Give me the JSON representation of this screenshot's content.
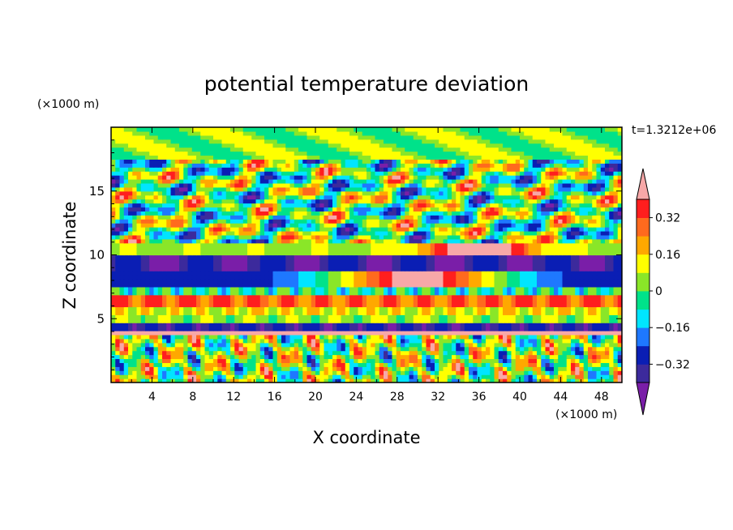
{
  "chart_data": {
    "type": "heatmap",
    "title": "potential temperature deviation",
    "xlabel": "X coordinate",
    "ylabel": "Z coordinate",
    "x_unit": "(×1000 m)",
    "y_unit": "(×1000 m)",
    "time_label": "t=1.3212e+06",
    "xlim": [
      0,
      50
    ],
    "ylim": [
      0,
      20
    ],
    "x_ticks": [
      "4",
      "8",
      "12",
      "16",
      "20",
      "24",
      "28",
      "32",
      "36",
      "40",
      "44",
      "48"
    ],
    "y_ticks": [
      "5",
      "10",
      "15"
    ],
    "colorbar": {
      "labels": [
        "0.32",
        "0.16",
        "0",
        "−0.16",
        "−0.32"
      ],
      "label_values": [
        0.32,
        0.16,
        0,
        -0.16,
        -0.32
      ],
      "levels": [
        -0.4,
        -0.32,
        -0.24,
        -0.16,
        -0.08,
        0,
        0.08,
        0.16,
        0.24,
        0.32,
        0.4
      ],
      "colors": [
        "#7a1ea8",
        "#3c2a9c",
        "#0a1eb4",
        "#1e78ff",
        "#00e5ff",
        "#00e28a",
        "#8ae628",
        "#ffff00",
        "#ffa800",
        "#ff6a1e",
        "#ff1e1e",
        "#f7a8a8"
      ],
      "extend": "both"
    }
  }
}
